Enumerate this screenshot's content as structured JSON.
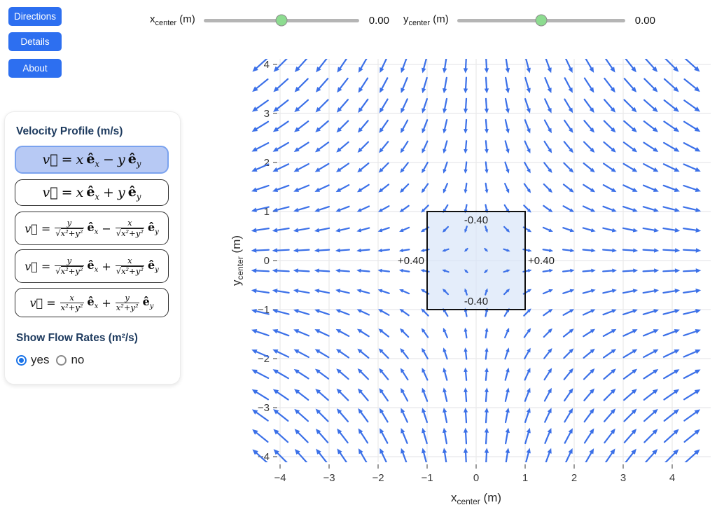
{
  "nav": {
    "buttons": [
      "Directions",
      "Details",
      "About"
    ]
  },
  "sliders": [
    {
      "name": "x",
      "sub": "center",
      "unit": "(m)",
      "value": "0.00",
      "fraction": 0.5
    },
    {
      "name": "y",
      "sub": "center",
      "unit": "(m)",
      "value": "0.00",
      "fraction": 0.5
    }
  ],
  "panel": {
    "title": "Velocity Profile (m/s)",
    "flow_title": "Show Flow Rates (m²/s)",
    "radios": [
      {
        "label": "yes",
        "selected": true
      },
      {
        "label": "no",
        "selected": false
      }
    ],
    "equations": [
      {
        "selected": true,
        "tokens": [
          {
            "t": "var",
            "v": "v⃗"
          },
          {
            "t": "op",
            "v": "="
          },
          {
            "t": "var",
            "v": "x"
          },
          {
            "t": "e",
            "base": "ê",
            "sub": "x"
          },
          {
            "t": "op",
            "v": "−"
          },
          {
            "t": "var",
            "v": "y"
          },
          {
            "t": "e",
            "base": "ê",
            "sub": "y"
          }
        ]
      },
      {
        "selected": false,
        "tokens": [
          {
            "t": "var",
            "v": "v⃗"
          },
          {
            "t": "op",
            "v": "="
          },
          {
            "t": "var",
            "v": "x"
          },
          {
            "t": "e",
            "base": "ê",
            "sub": "x"
          },
          {
            "t": "op",
            "v": "+"
          },
          {
            "t": "var",
            "v": "y"
          },
          {
            "t": "e",
            "base": "ê",
            "sub": "y"
          }
        ]
      },
      {
        "selected": false,
        "tokens": [
          {
            "t": "var",
            "v": "v⃗"
          },
          {
            "t": "op",
            "v": "="
          },
          {
            "t": "frac",
            "num": "y",
            "den": "x²+y²",
            "root": true
          },
          {
            "t": "e",
            "base": "ê",
            "sub": "x"
          },
          {
            "t": "op",
            "v": "−"
          },
          {
            "t": "frac",
            "num": "x",
            "den": "x²+y²",
            "root": true
          },
          {
            "t": "e",
            "base": "ê",
            "sub": "y"
          }
        ]
      },
      {
        "selected": false,
        "tokens": [
          {
            "t": "var",
            "v": "v⃗"
          },
          {
            "t": "op",
            "v": "="
          },
          {
            "t": "frac",
            "num": "y",
            "den": "x²+y²",
            "root": true
          },
          {
            "t": "e",
            "base": "ê",
            "sub": "x"
          },
          {
            "t": "op",
            "v": "+"
          },
          {
            "t": "frac",
            "num": "x",
            "den": "x²+y²",
            "root": true
          },
          {
            "t": "e",
            "base": "ê",
            "sub": "y"
          }
        ]
      },
      {
        "selected": false,
        "tokens": [
          {
            "t": "var",
            "v": "v⃗"
          },
          {
            "t": "op",
            "v": "="
          },
          {
            "t": "frac",
            "num": "x",
            "den": "x²+y²",
            "root": false
          },
          {
            "t": "e",
            "base": "ê",
            "sub": "x"
          },
          {
            "t": "op",
            "v": "+"
          },
          {
            "t": "frac",
            "num": "y",
            "den": "x²+y²",
            "root": false
          },
          {
            "t": "e",
            "base": "ê",
            "sub": "y"
          }
        ]
      }
    ]
  },
  "chart_data": {
    "type": "quiver",
    "title": "",
    "field": {
      "formula": "v = x e_x - y e_y",
      "vx": "x",
      "vy": "-y"
    },
    "grid": {
      "min": -4.41,
      "max": 4.41,
      "step": 0.42
    },
    "arrow_scale": 12,
    "arrow_color": "#3b70e8",
    "grid_color": "#e8e8ea",
    "xlabel": {
      "main": "x",
      "sub": "center",
      "unit": " (m)"
    },
    "ylabel": {
      "main": "y",
      "sub": "center",
      "unit": " (m)"
    },
    "x_tick_values": [
      -4,
      -3,
      -2,
      -1,
      0,
      1,
      2,
      3,
      4
    ],
    "x_tick_labels": [
      "−4",
      "−3",
      "−2",
      "−1",
      "0",
      "1",
      "2",
      "3",
      "4"
    ],
    "y_tick_values": [
      -4,
      -3,
      -2,
      -1,
      0,
      1,
      2,
      3,
      4
    ],
    "y_tick_labels": [
      "−4",
      "−3",
      "−2",
      "−1",
      "0",
      "1",
      "2",
      "3",
      "4"
    ],
    "xlim": [
      -4.2,
      4.2
    ],
    "ylim": [
      -4.2,
      4.2
    ],
    "box": {
      "x0": -1,
      "x1": 1,
      "y0": -1,
      "y1": 1,
      "fill": "rgba(213,228,248,0.65)",
      "border_color": "#111111",
      "labels": {
        "top": "-0.40",
        "bottom": "-0.40",
        "left": "+0.40",
        "right": "+0.40"
      }
    }
  }
}
